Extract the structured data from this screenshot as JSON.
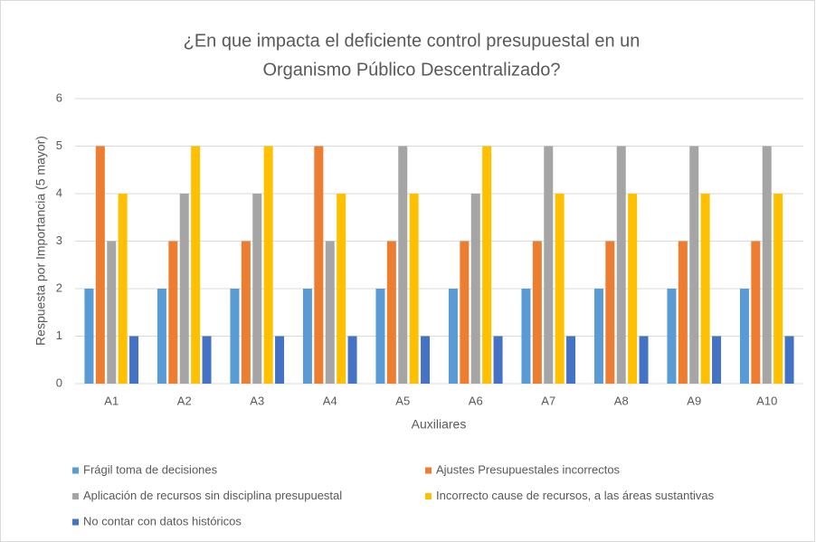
{
  "chart_data": {
    "type": "bar",
    "title": [
      "¿En que impacta el deficiente control presupuestal en un",
      "Organismo Público Descentralizado?"
    ],
    "x_label": "Auxiliares",
    "y_label": "Respuesta por Importancia (5 mayor)",
    "categories": [
      "A1",
      "A2",
      "A3",
      "A4",
      "A5",
      "A6",
      "A7",
      "A8",
      "A9",
      "A10"
    ],
    "series": [
      {
        "name": "Frágil toma de decisiones",
        "color": "#5b9bd5",
        "values": [
          2,
          2,
          2,
          2,
          2,
          2,
          2,
          2,
          2,
          2
        ]
      },
      {
        "name": "Ajustes Presupuestales incorrectos",
        "color": "#ed7d31",
        "values": [
          5,
          3,
          3,
          5,
          3,
          3,
          3,
          3,
          3,
          3
        ]
      },
      {
        "name": "Aplicación de recursos sin disciplina presupuestal",
        "color": "#a5a5a5",
        "values": [
          3,
          4,
          4,
          3,
          5,
          4,
          5,
          5,
          5,
          5
        ]
      },
      {
        "name": "Incorrecto cause de recursos, a las áreas sustantivas",
        "color": "#ffc000",
        "values": [
          4,
          5,
          5,
          4,
          4,
          5,
          4,
          4,
          4,
          4
        ]
      },
      {
        "name": "No contar con datos históricos",
        "color": "#4472c4",
        "values": [
          1,
          1,
          1,
          1,
          1,
          1,
          1,
          1,
          1,
          1
        ]
      }
    ],
    "ylim": [
      0,
      6
    ],
    "yticks": [
      0,
      1,
      2,
      3,
      4,
      5,
      6
    ],
    "grid": true,
    "legend": "bottom"
  }
}
